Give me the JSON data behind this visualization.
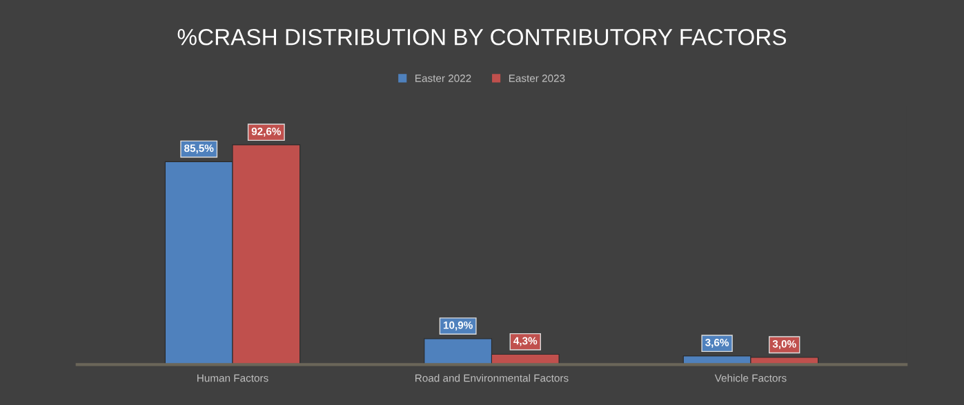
{
  "chart_data": {
    "type": "bar",
    "title": "%CRASH DISTRIBUTION BY CONTRIBUTORY FACTORS",
    "categories": [
      "Human Factors",
      "Road and Environmental Factors",
      "Vehicle Factors"
    ],
    "series": [
      {
        "name": "Easter 2022",
        "color": "#4f81bd",
        "values": [
          85.5,
          10.9,
          3.6
        ],
        "value_labels": [
          "85,5%",
          "10,9%",
          "3,6%"
        ]
      },
      {
        "name": "Easter 2023",
        "color": "#c0504d",
        "values": [
          92.6,
          4.3,
          3.0
        ],
        "value_labels": [
          "92,6%",
          "4,3%",
          "3,0%"
        ]
      }
    ],
    "legend": "top"
  }
}
